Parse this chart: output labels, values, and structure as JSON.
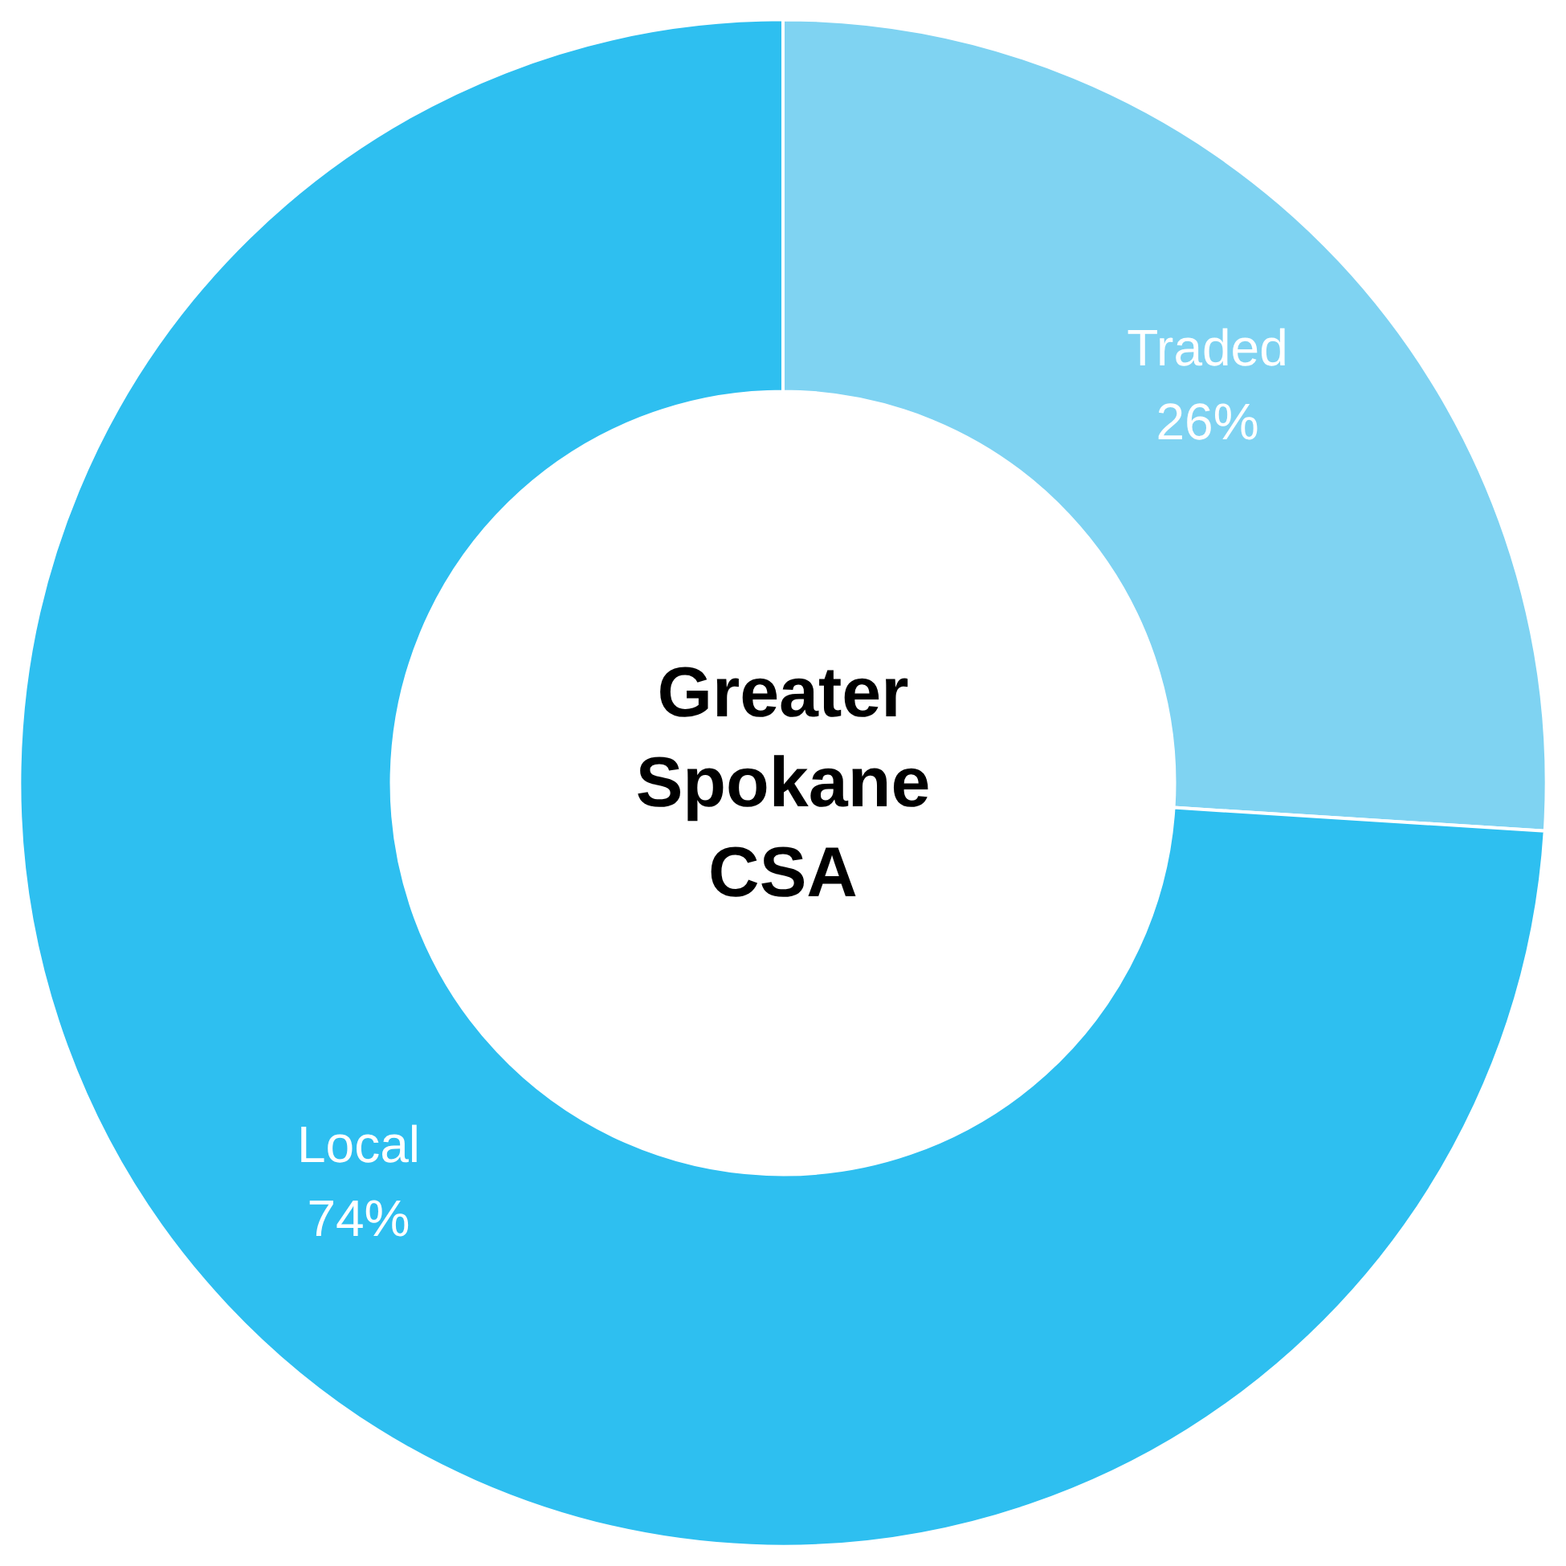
{
  "chart_data": {
    "type": "donut",
    "title": "Greater Spokane CSA",
    "categories": [
      "Traded",
      "Local"
    ],
    "values": [
      26,
      74
    ],
    "value_labels": [
      "26%",
      "74%"
    ],
    "colors": [
      "#7fd3f2",
      "#2ebff0"
    ],
    "legend": false
  }
}
